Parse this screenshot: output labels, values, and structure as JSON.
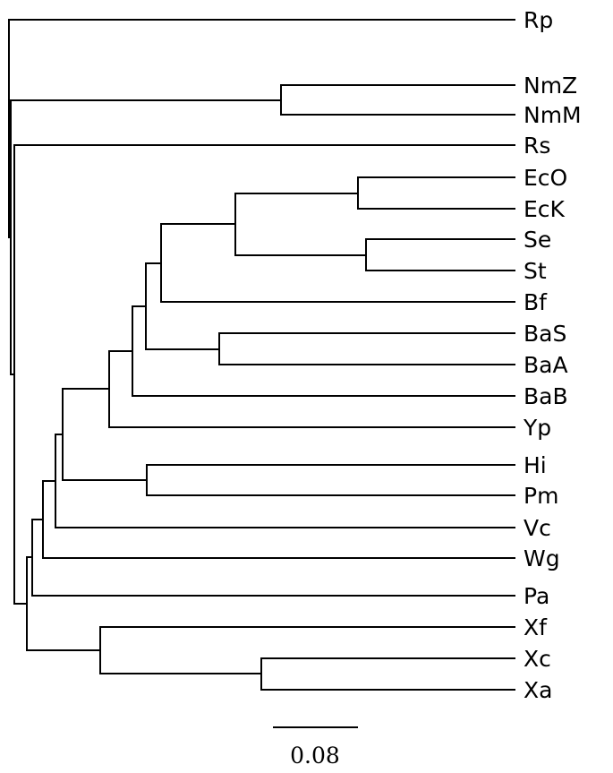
{
  "tree": {
    "taxa": [
      "Rp",
      "NmZ",
      "NmM",
      "Rs",
      "EcO",
      "EcK",
      "Se",
      "St",
      "Bf",
      "BaS",
      "BaA",
      "BaB",
      "Yp",
      "Hi",
      "Pm",
      "Vc",
      "Wg",
      "Pa",
      "Xf",
      "Xc",
      "Xa"
    ],
    "scale_bar_label": "0.08"
  }
}
